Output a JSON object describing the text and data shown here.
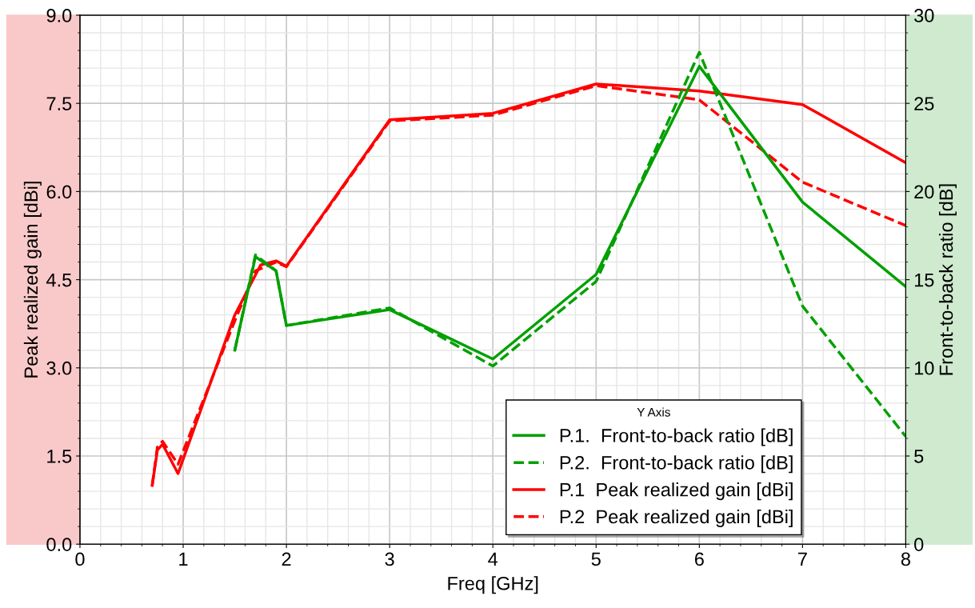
{
  "chart_data": {
    "type": "line",
    "xlabel": "Freq [GHz]",
    "ylabel": "Peak realized gain [dBi]",
    "y2label": "Front-to-back ratio [dB]",
    "legend_title": "Y Axis",
    "legend": "bottom right",
    "grid": true,
    "xlim": [
      0,
      8
    ],
    "xticks": [
      0,
      1,
      2,
      3,
      4,
      5,
      6,
      7,
      8
    ],
    "ylim": [
      0,
      9
    ],
    "yticks": [
      {
        "value": 0,
        "label": "0.0"
      },
      {
        "value": 1.5,
        "label": "1.5"
      },
      {
        "value": 3,
        "label": "3.0"
      },
      {
        "value": 4.5,
        "label": "4.5"
      },
      {
        "value": 6,
        "label": "6.0"
      },
      {
        "value": 7.5,
        "label": "7.5"
      },
      {
        "value": 9,
        "label": "9.0"
      }
    ],
    "y2lim": [
      0,
      30
    ],
    "y2ticks": [
      0,
      5,
      10,
      15,
      20,
      25,
      30
    ],
    "series": [
      {
        "name": "P.1.  Front-to-back ratio [dB]",
        "color": "#00a000",
        "axis": "y2",
        "line_style": "solid",
        "x": [
          1.5,
          1.7,
          1.9,
          2,
          3,
          4,
          5,
          6,
          7,
          8
        ],
        "values": [
          11.0,
          16.3,
          15.5,
          12.4,
          13.3,
          10.5,
          15.3,
          27.1,
          19.4,
          14.6
        ]
      },
      {
        "name": "P.2.  Front-to-back ratio [dB]",
        "color": "#00a000",
        "axis": "y2",
        "line_style": "dashed",
        "x": [
          1.5,
          1.7,
          1.9,
          2,
          3,
          4,
          5,
          6,
          7,
          8
        ],
        "values": [
          11.0,
          16.4,
          15.5,
          12.4,
          13.4,
          10.1,
          14.9,
          27.9,
          13.5,
          6.1
        ]
      },
      {
        "name": "P.1  Peak realized gain [dBi]",
        "color": "#ff0000",
        "line_style": "solid",
        "x": [
          0.7,
          0.75,
          0.8,
          0.95,
          1.5,
          1.75,
          1.9,
          2,
          3,
          4,
          5,
          6,
          7,
          8
        ],
        "values": [
          1.0,
          1.6,
          1.7,
          1.2,
          3.9,
          4.75,
          4.82,
          4.73,
          7.22,
          7.33,
          7.83,
          7.71,
          7.48,
          6.49
        ]
      },
      {
        "name": "P.2  Peak realized gain [dBi]",
        "color": "#ff0000",
        "line_style": "dashed",
        "x": [
          0.7,
          0.75,
          0.8,
          0.95,
          1.5,
          1.7,
          1.9,
          2,
          3,
          4,
          5,
          6,
          7,
          8
        ],
        "values": [
          1.0,
          1.65,
          1.75,
          1.36,
          3.8,
          4.65,
          4.8,
          4.72,
          7.2,
          7.3,
          7.8,
          7.56,
          6.16,
          5.42
        ]
      }
    ]
  }
}
